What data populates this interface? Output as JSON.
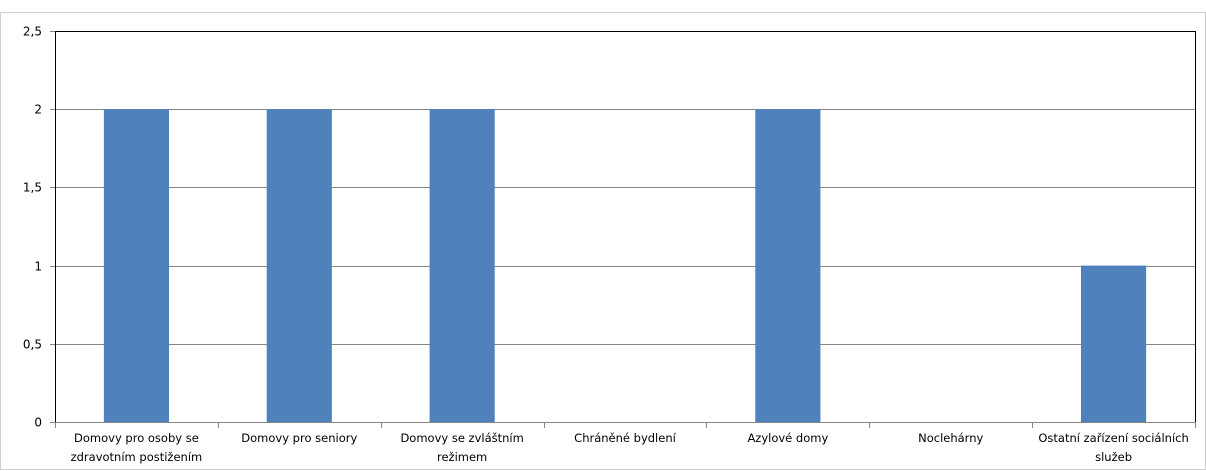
{
  "chart_data": {
    "type": "bar",
    "title": "",
    "xlabel": "",
    "ylabel": "",
    "categories": [
      "Domovy pro osoby se zdravotním postižením",
      "Domovy pro seniory",
      "Domovy se zvláštním režimem",
      "Chráněné bydlení",
      "Azylové domy",
      "Noclehárny",
      "Ostatní zařízení sociálních služeb"
    ],
    "category_label_lines": [
      [
        "Domovy pro osoby se",
        "zdravotním postižením"
      ],
      [
        "Domovy pro seniory"
      ],
      [
        "Domovy se zvláštním",
        "režimem"
      ],
      [
        "Chráněné bydlení"
      ],
      [
        "Azylové domy"
      ],
      [
        "Noclehárny"
      ],
      [
        "Ostatní zařízení sociálních",
        "služeb"
      ]
    ],
    "values": [
      2,
      2,
      2,
      0,
      2,
      0,
      1
    ],
    "ylim": [
      0,
      2.5
    ],
    "yticks": [
      0,
      0.5,
      1,
      1.5,
      2,
      2.5
    ],
    "ytick_labels": [
      "0",
      "0,5",
      "1",
      "1,5",
      "2",
      "2,5"
    ],
    "grid": true,
    "legend": "none",
    "colors": {
      "bar": "#4F81BD",
      "gridline": "#868686",
      "axis": "#868686",
      "text": "#000000"
    }
  }
}
